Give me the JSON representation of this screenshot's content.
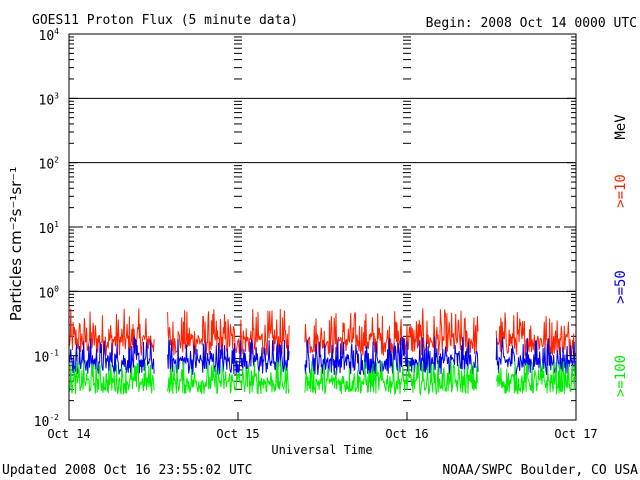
{
  "header": {
    "title": "GOES11 Proton Flux (5 minute data)",
    "begin": "Begin: 2008 Oct 14 0000 UTC"
  },
  "footer": {
    "updated": "Updated 2008 Oct 16 23:55:02 UTC",
    "credit": "NOAA/SWPC Boulder, CO USA"
  },
  "chart_data": {
    "type": "line",
    "title": "GOES11 Proton Flux (5 minute data)",
    "xlabel": "Universal Time",
    "ylabel": "Particles cm⁻²s⁻¹sr⁻¹",
    "y_scale": "log",
    "ylim": [
      0.01,
      10000
    ],
    "xlim": [
      "2008-10-14 00:00",
      "2008-10-17 00:00"
    ],
    "x_ticks": [
      "Oct 14",
      "Oct 15",
      "Oct 16",
      "Oct 17"
    ],
    "y_ticks": [
      {
        "value": 0.01,
        "base": "10",
        "exp": "-2"
      },
      {
        "value": 0.1,
        "base": "10",
        "exp": "-1"
      },
      {
        "value": 1,
        "base": "10",
        "exp": "0"
      },
      {
        "value": 10,
        "base": "10",
        "exp": "1"
      },
      {
        "value": 100,
        "base": "10",
        "exp": "2"
      },
      {
        "value": 1000,
        "base": "10",
        "exp": "3"
      },
      {
        "value": 10000,
        "base": "10",
        "exp": "4"
      }
    ],
    "solid_gridlines": [
      1,
      100,
      1000
    ],
    "dashed_gridlines": [
      10
    ],
    "unit_label": "MeV",
    "data_gaps": [
      [
        "2008-10-14 12:10",
        "2008-10-14 14:00"
      ],
      [
        "2008-10-15 07:20",
        "2008-10-15 09:30"
      ],
      [
        "2008-10-16 10:10",
        "2008-10-16 12:40"
      ]
    ],
    "series": [
      {
        "name": ">=10",
        "color": "#ff2200",
        "typical": 0.18,
        "range": [
          0.1,
          0.55
        ]
      },
      {
        "name": ">=50",
        "color": "#0000ee",
        "typical": 0.085,
        "range": [
          0.05,
          0.2
        ]
      },
      {
        "name": ">=100",
        "color": "#00ee00",
        "typical": 0.04,
        "range": [
          0.025,
          0.085
        ]
      }
    ]
  }
}
